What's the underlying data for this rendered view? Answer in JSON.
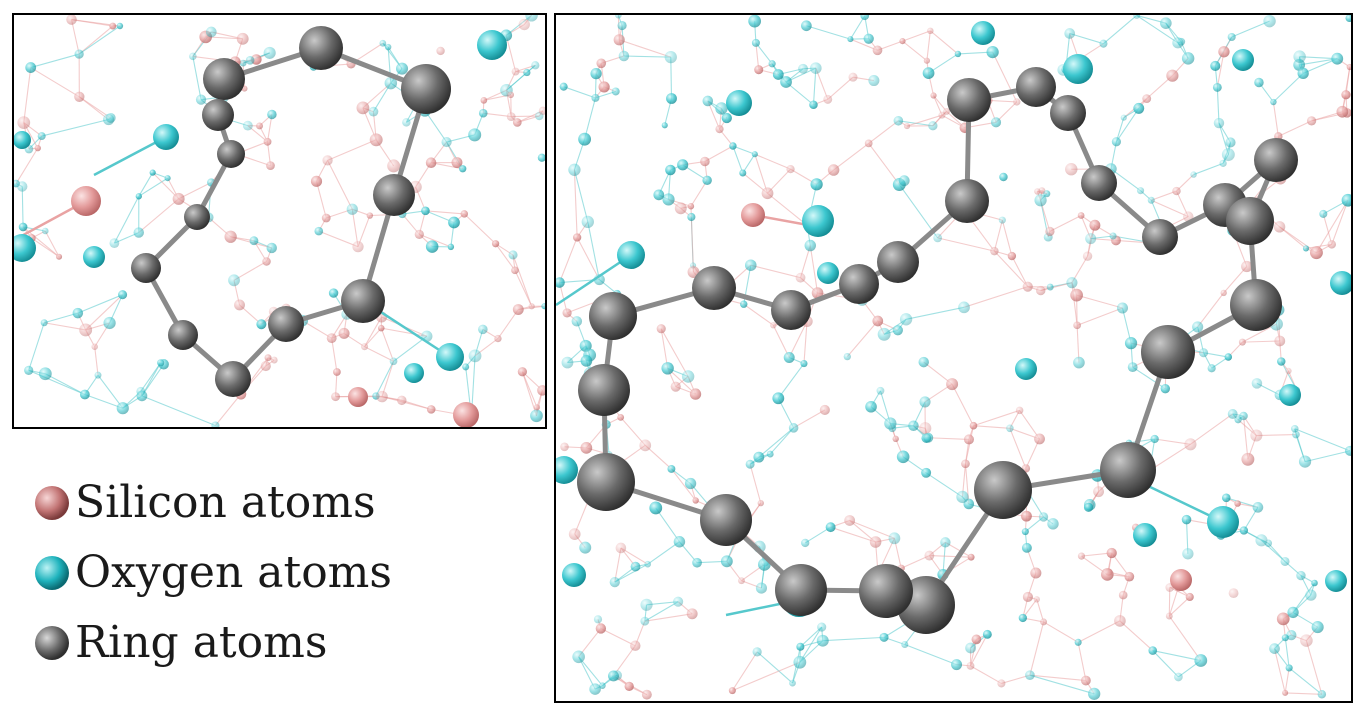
{
  "colors": {
    "silicon": "#e8a0a0",
    "oxygen": "#2cc4cc",
    "ring": "#6a6a6a",
    "bond_silicon": "#e9a3a3",
    "bond_oxygen": "#56c8cc",
    "bond_ring": "#8a8a8a"
  },
  "legend": [
    {
      "label": "Silicon atoms",
      "type": "silicon"
    },
    {
      "label": "Oxygen atoms",
      "type": "oxygen"
    },
    {
      "label": "Ring atoms",
      "type": "ring"
    }
  ]
}
